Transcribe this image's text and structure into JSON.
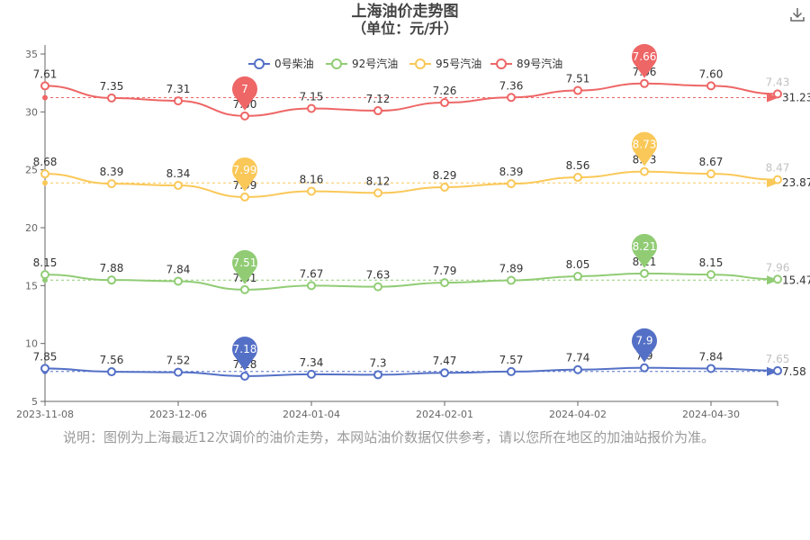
{
  "header": {
    "title": "上海油价走势图",
    "subtitle": "（单位：元/升）",
    "download_icon": "download-icon"
  },
  "note": "说明：图例为上海最近12次调价的油价走势，本网站油价数据仅供参考，请以您所在地区的加油站报价为准。",
  "colors": {
    "diesel0": "#5470c6",
    "gas92": "#91cc75",
    "gas95": "#fac858",
    "gas89": "#ee6666",
    "axis": "#666666",
    "grid": "#e0e0e0",
    "faded_label": "#c2c2c2"
  },
  "chart_data": {
    "type": "line",
    "title": "上海油价走势图",
    "subtitle": "（单位：元/升）",
    "ylim": [
      5,
      35
    ],
    "yticks": [
      5,
      10,
      15,
      20,
      25,
      30,
      35
    ],
    "x_tick_labels": [
      "2023-11-08",
      "2023-12-06",
      "2024-01-04",
      "2024-02-01",
      "2024-04-02",
      "2024-04-30"
    ],
    "x_tick_indices": [
      0,
      2,
      4,
      6,
      8,
      10
    ],
    "grid": false,
    "legend_position": "top",
    "series": [
      {
        "name": "0号柴油",
        "color": "#5470c6",
        "plotted_values": [
          7.85,
          7.56,
          7.52,
          7.18,
          7.34,
          7.3,
          7.47,
          7.57,
          7.74,
          7.9,
          7.84,
          7.65
        ],
        "labels": [
          "7.85",
          "7.56",
          "7.52",
          "7.18",
          "7.34",
          "7.3",
          "7.47",
          "7.57",
          "7.74",
          "7.9",
          "7.84",
          "7.65"
        ],
        "max_index": 9,
        "max_label": "7.9",
        "min_index": 3,
        "min_label": "7.18",
        "average": 7.58,
        "average_label": "7.58"
      },
      {
        "name": "92号汽油",
        "color": "#91cc75",
        "plotted_values": [
          15.95,
          15.48,
          15.38,
          14.65,
          15.0,
          14.9,
          15.25,
          15.45,
          15.8,
          16.05,
          15.95,
          15.55
        ],
        "labels": [
          "8.15",
          "7.88",
          "7.84",
          "7.51",
          "7.67",
          "7.63",
          "7.79",
          "7.89",
          "8.05",
          "8.21",
          "8.15",
          "7.96"
        ],
        "max_index": 9,
        "max_label": "8.21",
        "min_index": 3,
        "min_label": "7.51",
        "average": 15.47,
        "average_label": "15.47"
      },
      {
        "name": "95号汽油",
        "color": "#fac858",
        "plotted_values": [
          24.65,
          23.8,
          23.65,
          22.65,
          23.15,
          23.0,
          23.5,
          23.8,
          24.35,
          24.85,
          24.65,
          24.15
        ],
        "labels": [
          "8.68",
          "8.39",
          "8.34",
          "7.99",
          "8.16",
          "8.12",
          "8.29",
          "8.39",
          "8.56",
          "8.73",
          "8.67",
          "8.47"
        ],
        "max_index": 9,
        "max_label": "8.73",
        "min_index": 3,
        "min_label": "7.99",
        "average": 23.87,
        "average_label": "23.87"
      },
      {
        "name": "89号汽油",
        "color": "#ee6666",
        "plotted_values": [
          32.25,
          31.2,
          30.95,
          29.65,
          30.3,
          30.1,
          30.8,
          31.25,
          31.85,
          32.45,
          32.25,
          31.55
        ],
        "labels": [
          "7.61",
          "7.35",
          "7.31",
          "7.00",
          "7.15",
          "7.12",
          "7.26",
          "7.36",
          "7.51",
          "7.66",
          "7.60",
          "7.43"
        ],
        "max_index": 9,
        "max_label": "7.66",
        "min_index": 3,
        "min_label": "7",
        "average": 31.23,
        "average_label": "31.23"
      }
    ]
  }
}
